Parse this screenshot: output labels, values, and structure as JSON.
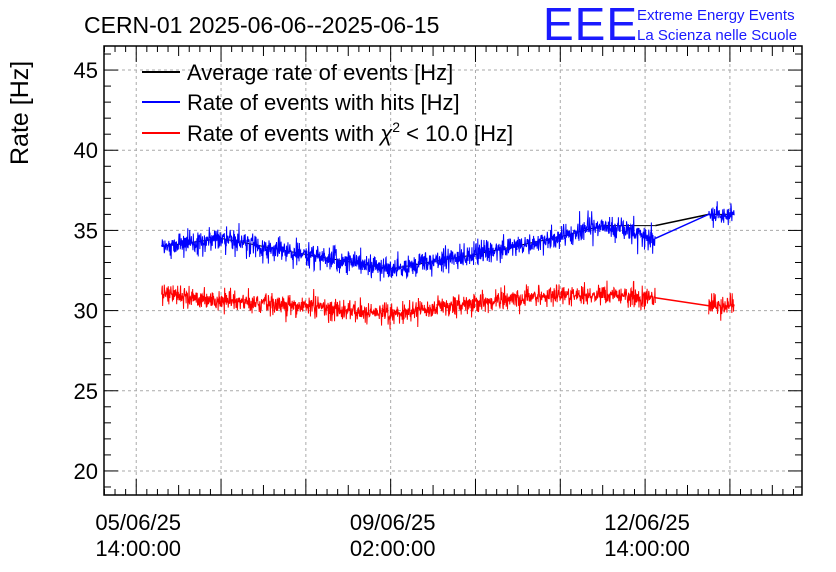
{
  "chart_data": {
    "type": "line",
    "title": "CERN-01 2025-06-06--2025-06-15",
    "ylabel": "Rate [Hz]",
    "xlabel": "",
    "ylim": [
      18.5,
      46.5
    ],
    "yticks": [
      20,
      25,
      30,
      35,
      40,
      45
    ],
    "xticks": [
      {
        "t": 0,
        "line1": "05/06/25",
        "line2": "14:00:00"
      },
      {
        "t": 3,
        "line1": "09/06/25",
        "line2": "02:00:00"
      },
      {
        "t": 6,
        "line1": "12/06/25",
        "line2": "14:00:00"
      }
    ],
    "xlim_units": "tick-index units (1 unit = 1 tick interval)",
    "xlim": [
      -0.38,
      7.85
    ],
    "grid": true,
    "legend_position": "top-left",
    "gaps": [
      [
        6.12,
        6.75
      ]
    ],
    "series": [
      {
        "name": "Average rate of events [Hz]",
        "label_parts": [
          "Average rate of events [Hz]"
        ],
        "color": "#000000",
        "values_summary": "approx. equal to hits rate",
        "x": [
          0.3,
          1.0,
          2.0,
          3.0,
          4.0,
          5.0,
          5.5,
          6.12,
          6.75,
          7.05
        ],
        "y": [
          34.0,
          34.5,
          33.5,
          32.6,
          33.5,
          34.6,
          35.3,
          35.3,
          36.0,
          36.0
        ]
      },
      {
        "name": "Rate of events with hits [Hz]",
        "label_parts": [
          "Rate of events with hits [Hz]"
        ],
        "color": "#0000ff",
        "x": [
          0.3,
          1.0,
          2.0,
          3.0,
          4.0,
          5.0,
          5.5,
          6.12,
          6.75,
          7.05
        ],
        "y": [
          34.0,
          34.5,
          33.5,
          32.6,
          33.5,
          34.6,
          35.3,
          34.5,
          36.0,
          36.0
        ],
        "noise_amplitude": 1.2
      },
      {
        "name": "Rate of events with χ2 < 10.0 [Hz]",
        "label_parts": [
          "Rate of events with ",
          "χ",
          "2",
          " < 10.0 [Hz]"
        ],
        "color": "#ff0000",
        "x": [
          0.3,
          1.0,
          2.0,
          3.0,
          4.0,
          5.0,
          5.5,
          6.12,
          6.75,
          7.05
        ],
        "y": [
          31.0,
          30.6,
          30.3,
          29.8,
          30.5,
          31.0,
          31.0,
          30.8,
          30.3,
          30.3
        ],
        "noise_amplitude": 1.1
      }
    ]
  },
  "branding": {
    "logo": "EEE",
    "line1": "Extreme Energy Events",
    "line2": "La Scienza nelle Scuole"
  }
}
